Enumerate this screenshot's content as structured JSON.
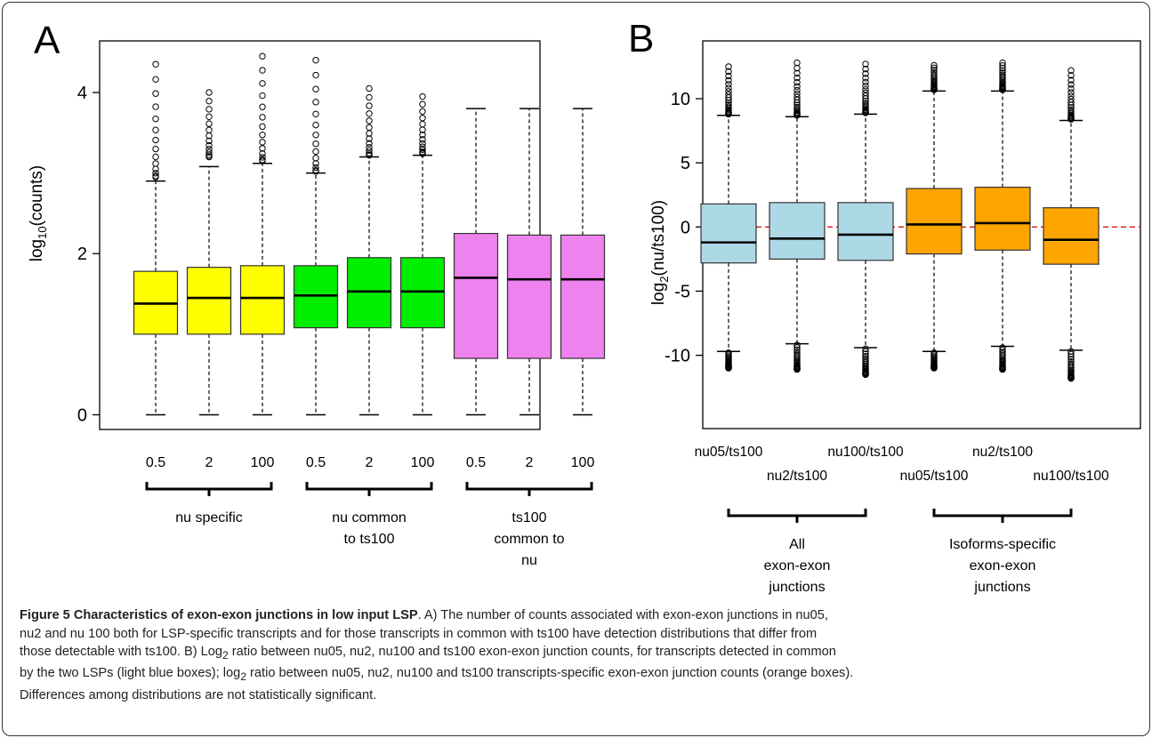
{
  "chart_data": [
    {
      "panel": "A",
      "type": "boxplot",
      "ylabel_base": "log",
      "ylabel_sub": "10",
      "ylabel_rest": "(counts)",
      "ylim": [
        -0.05,
        4.5
      ],
      "yticks": [
        "0",
        "2",
        "4"
      ],
      "categories": [
        "0.5",
        "2",
        "100",
        "0.5",
        "2",
        "100",
        "0.5",
        "2",
        "100"
      ],
      "groups": [
        {
          "label_lines": [
            "nu specific"
          ],
          "color": "#ffff00",
          "members": [
            0,
            1,
            2
          ]
        },
        {
          "label_lines": [
            "nu common",
            "to ts100"
          ],
          "color": "#00ee00",
          "members": [
            3,
            4,
            5
          ]
        },
        {
          "label_lines": [
            "ts100",
            "common to",
            "nu"
          ],
          "color": "#ee82ee",
          "members": [
            6,
            7,
            8
          ]
        }
      ],
      "boxes": [
        {
          "min": 0,
          "q1": 1.0,
          "median": 1.38,
          "q3": 1.78,
          "max": 2.9,
          "outlier_range": [
            2.95,
            4.35
          ]
        },
        {
          "min": 0,
          "q1": 1.0,
          "median": 1.45,
          "q3": 1.83,
          "max": 3.08,
          "outlier_range": [
            3.2,
            4.0
          ]
        },
        {
          "min": 0,
          "q1": 1.0,
          "median": 1.45,
          "q3": 1.85,
          "max": 3.12,
          "outlier_range": [
            3.15,
            4.45
          ]
        },
        {
          "min": 0,
          "q1": 1.08,
          "median": 1.48,
          "q3": 1.85,
          "max": 3.0,
          "outlier_range": [
            3.02,
            4.4
          ]
        },
        {
          "min": 0,
          "q1": 1.08,
          "median": 1.53,
          "q3": 1.95,
          "max": 3.2,
          "outlier_range": [
            3.22,
            4.05
          ]
        },
        {
          "min": 0,
          "q1": 1.08,
          "median": 1.53,
          "q3": 1.95,
          "max": 3.22,
          "outlier_range": [
            3.24,
            3.95
          ]
        },
        {
          "min": 0,
          "q1": 0.7,
          "median": 1.7,
          "q3": 2.25,
          "max": 3.8,
          "outlier_range": null
        },
        {
          "min": 0,
          "q1": 0.7,
          "median": 1.68,
          "q3": 2.23,
          "max": 3.8,
          "outlier_range": null
        },
        {
          "min": 0,
          "q1": 0.7,
          "median": 1.68,
          "q3": 2.23,
          "max": 3.8,
          "outlier_range": null
        }
      ]
    },
    {
      "panel": "B",
      "type": "boxplot",
      "ylabel_base": "log",
      "ylabel_sub": "2",
      "ylabel_rest": "(nu/ts100)",
      "ylim": [
        -12.8,
        13.6
      ],
      "yticks": [
        "10",
        "5",
        "0",
        "-5",
        "-10"
      ],
      "reference_line": 0,
      "categories": [
        "nu05/ts100",
        "nu2/ts100",
        "nu100/ts100",
        "nu05/ts100",
        "nu2/ts100",
        "nu100/ts100"
      ],
      "groups": [
        {
          "label_lines": [
            "All",
            "exon-exon",
            "junctions"
          ],
          "color": "#add8e6",
          "members": [
            0,
            1,
            2
          ]
        },
        {
          "label_lines": [
            "Isoforms-specific",
            "exon-exon",
            "junctions"
          ],
          "color": "#ffa500",
          "members": [
            3,
            4,
            5
          ]
        }
      ],
      "boxes": [
        {
          "min": -9.7,
          "q1": -2.8,
          "median": -1.2,
          "q3": 1.8,
          "max": 8.7,
          "outliers_high": [
            8.8,
            12.5
          ],
          "outliers_low": [
            -11.0,
            -9.8
          ]
        },
        {
          "min": -9.1,
          "q1": -2.5,
          "median": -0.9,
          "q3": 1.9,
          "max": 8.6,
          "outliers_high": [
            8.7,
            12.8
          ],
          "outliers_low": [
            -11.1,
            -9.2
          ]
        },
        {
          "min": -9.4,
          "q1": -2.6,
          "median": -0.6,
          "q3": 1.9,
          "max": 8.8,
          "outliers_high": [
            8.9,
            12.7
          ],
          "outliers_low": [
            -11.5,
            -9.5
          ]
        },
        {
          "min": -9.7,
          "q1": -2.1,
          "median": 0.2,
          "q3": 3.0,
          "max": 10.6,
          "outliers_high": [
            10.7,
            12.6
          ],
          "outliers_low": [
            -11.0,
            -9.8
          ]
        },
        {
          "min": -9.3,
          "q1": -1.8,
          "median": 0.3,
          "q3": 3.1,
          "max": 10.6,
          "outliers_high": [
            10.7,
            12.8
          ],
          "outliers_low": [
            -11.1,
            -9.4
          ]
        },
        {
          "min": -9.6,
          "q1": -2.9,
          "median": -1.0,
          "q3": 1.5,
          "max": 8.3,
          "outliers_high": [
            8.4,
            12.2
          ],
          "outliers_low": [
            -11.8,
            -9.7
          ]
        }
      ]
    }
  ],
  "caption": {
    "bold": "Figure 5 Characteristics of exon-exon junctions in low input LSP",
    "line1_rest": ". A) The number of counts associated with exon-exon junctions in nu05,",
    "line2": "nu2 and nu 100 both for LSP-specific transcripts and for those transcripts in common with ts100 have detection distributions that differ from",
    "line3": "those detectable with ts100. B) Log",
    "line3_sub": "2",
    "line3_rest": " ratio between nu05, nu2, nu100 and ts100 exon-exon junction counts, for transcripts detected in common",
    "line4": "by the two LSPs (light blue boxes); log",
    "line4_sub": "2",
    "line4_rest": " ratio between nu05, nu2, nu100 and ts100 transcripts-specific exon-exon junction counts (orange boxes).",
    "line5": "Differences among distributions are not statistically significant."
  }
}
